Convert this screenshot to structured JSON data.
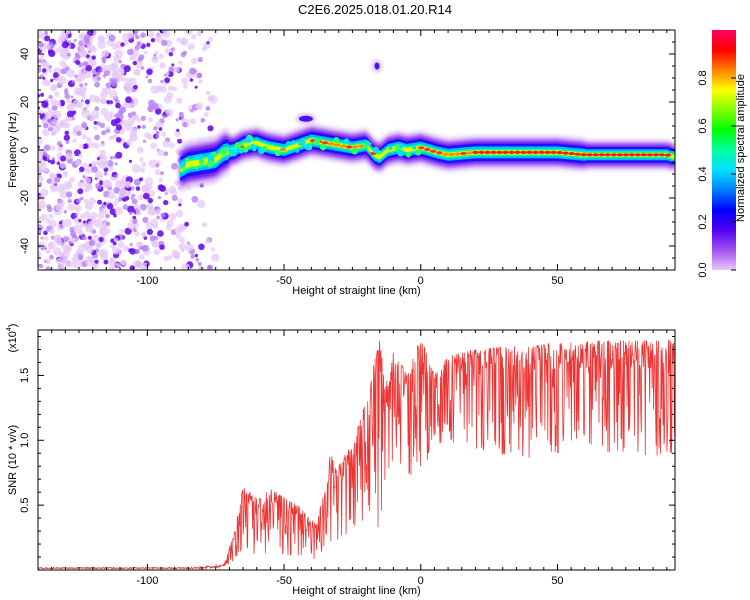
{
  "title": "C2E6.2025.018.01.20.R14",
  "chart_data": [
    {
      "type": "heatmap",
      "xlabel": "Height of straight line (km)",
      "ylabel": "Frequency (Hz)",
      "xlim": [
        -140,
        93
      ],
      "ylim": [
        -50,
        50
      ],
      "x_ticks": [
        -100,
        -50,
        0,
        50
      ],
      "x_tick_labels": [
        "-100",
        "-50",
        "0",
        "50"
      ],
      "y_ticks": [
        -40,
        -20,
        0,
        20,
        40
      ],
      "y_tick_labels": [
        "-40",
        "-20",
        "0",
        "20",
        "40"
      ],
      "colorbar": {
        "label": "Normalized spectral amplitude",
        "range": [
          0,
          1
        ],
        "ticks": [
          0,
          0.2,
          0.4,
          0.6,
          0.8
        ],
        "tick_labels": [
          "0.0",
          "0.2",
          "0.4",
          "0.6",
          "0.8"
        ],
        "colormap": [
          "#e8c8f8",
          "#a050f0",
          "#5000f0",
          "#0000ff",
          "#0080ff",
          "#00e0ff",
          "#00ffa0",
          "#00ff00",
          "#80ff00",
          "#ffff00",
          "#ff8000",
          "#ff0000",
          "#ff0060"
        ]
      },
      "ridge": {
        "x": [
          -88,
          -85,
          -80,
          -75,
          -72,
          -68,
          -65,
          -60,
          -58,
          -55,
          -50,
          -45,
          -40,
          -35,
          -30,
          -25,
          -20,
          -17,
          -15,
          -12,
          -8,
          -5,
          0,
          3,
          6,
          10,
          20,
          30,
          40,
          50,
          60,
          70,
          80,
          90,
          93
        ],
        "y": [
          -8,
          -6,
          -5,
          -4,
          -1,
          0,
          2,
          3,
          2,
          1,
          0,
          2,
          4,
          3,
          2,
          1,
          2,
          -2,
          -3,
          0,
          1,
          0,
          1,
          0,
          -1,
          -2,
          -1,
          -1,
          -1,
          -1,
          -2,
          -2,
          -2,
          -2,
          -3
        ]
      },
      "noise_region_xlim": [
        -140,
        -75
      ],
      "isolated_features": [
        {
          "x": -16,
          "y": 35
        },
        {
          "x": -42,
          "y": 13
        }
      ]
    },
    {
      "type": "line",
      "xlabel": "Height of straight line (km)",
      "ylabel": "SNR (10 * v/v)",
      "y_scale_note": "(x10",
      "y_scale_exponent": "4",
      "xlim": [
        -140,
        93
      ],
      "ylim": [
        0,
        18500
      ],
      "x_ticks": [
        -100,
        -50,
        0,
        50
      ],
      "x_tick_labels": [
        "-100",
        "-50",
        "0",
        "50"
      ],
      "y_ticks": [
        5000,
        10000,
        15000
      ],
      "y_tick_labels": [
        "0.5",
        "1.0",
        "1.5"
      ],
      "series": [
        {
          "color": "#ee3333",
          "envelope": {
            "x": [
              -140,
              -90,
              -80,
              -72,
              -68,
              -65,
              -60,
              -55,
              -45,
              -38,
              -33,
              -30,
              -25,
              -20,
              -17,
              -15,
              -13,
              -10,
              -5,
              0,
              5,
              10,
              20,
              30,
              40,
              50,
              60,
              70,
              80,
              93
            ],
            "top": [
              200,
              200,
              250,
              500,
              3000,
              6500,
              5500,
              6300,
              5000,
              3500,
              9000,
              8000,
              10000,
              13000,
              16000,
              18000,
              14000,
              17000,
              15000,
              18000,
              15000,
              16500,
              17000,
              17200,
              17300,
              17500,
              17600,
              17700,
              17700,
              17800
            ],
            "bottom": [
              100,
              100,
              100,
              200,
              800,
              1500,
              1000,
              900,
              1000,
              600,
              2000,
              2000,
              3000,
              4000,
              5000,
              1000,
              4000,
              6000,
              7000,
              8000,
              9000,
              10000,
              9000,
              8500,
              8500,
              9000,
              9500,
              9000,
              8500,
              9000
            ]
          }
        }
      ]
    }
  ]
}
